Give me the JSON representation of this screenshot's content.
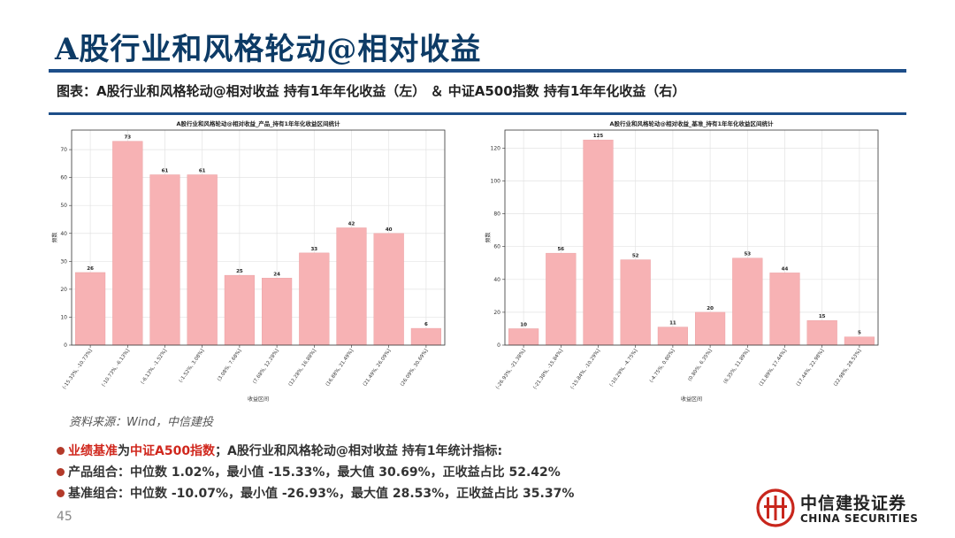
{
  "page": {
    "title": "A股行业和风格轮动@相对收益",
    "subtitle": "图表：A股行业和风格轮动@相对收益  持有1年年化收益（左）  ＆ 中证A500指数  持有1年年化收益（右）",
    "source": "资料来源：Wind，中信建投",
    "page_number": "45",
    "notes": [
      {
        "parts": [
          {
            "text": "业绩基准",
            "red": true
          },
          {
            "text": "为",
            "red": false
          },
          {
            "text": "中证A500指数",
            "red": true
          },
          {
            "text": "；A股行业和风格轮动@相对收益  持有1年统计指标:",
            "red": false
          }
        ]
      },
      {
        "parts": [
          {
            "text": "产品组合：中位数 1.02%，最小值 -15.33%，最大值 30.69%，正收益占比 52.42%",
            "red": false
          }
        ]
      },
      {
        "parts": [
          {
            "text": "基准组合：中位数 -10.07%，最小值 -26.93%，最大值 28.53%，正收益占比 35.37%",
            "red": false
          }
        ]
      }
    ],
    "logo": {
      "cn": "中信建投证券",
      "en": "CHINA SECURITIES"
    }
  },
  "colors": {
    "bar": "#f7b2b4",
    "bar_edge": "#e89a9d",
    "accent": "#1d4e89",
    "title": "#0d3b66",
    "highlight": "#d0271d"
  },
  "chart_data": [
    {
      "type": "bar",
      "title": "A股行业和风格轮动@相对收益_产品_持有1年年化收益区间统计",
      "xlabel": "收益区间",
      "ylabel": "频数",
      "categories": [
        "(-15.33%, -10.73%]",
        "(-10.73%, -6.13%]",
        "(-6.13%, -1.52%]",
        "(-1.52%, 3.08%]",
        "(3.08%, 7.68%]",
        "(7.68%, 12.28%]",
        "(12.28%, 16.88%]",
        "(16.88%, 21.49%]",
        "(21.49%, 26.09%]",
        "(26.09%, 30.69%]"
      ],
      "values": [
        26,
        73,
        61,
        61,
        25,
        24,
        33,
        42,
        40,
        6
      ],
      "ylim": [
        0,
        77
      ],
      "yticks": [
        0,
        10,
        20,
        30,
        40,
        50,
        60,
        70
      ],
      "grid": true
    },
    {
      "type": "bar",
      "title": "A股行业和风格轮动@相对收益_基准_持有1年年化收益区间统计",
      "xlabel": "收益区间",
      "ylabel": "频数",
      "categories": [
        "(-26.93%, -21.38%]",
        "(-21.38%, -15.84%]",
        "(-15.84%, -10.29%]",
        "(-10.29%, -4.75%]",
        "(-4.75%, 0.80%]",
        "(0.80%, 6.35%]",
        "(6.35%, 11.89%]",
        "(11.89%, 17.44%]",
        "(17.44%, 22.98%]",
        "(22.98%, 28.53%]"
      ],
      "values": [
        10,
        56,
        125,
        52,
        11,
        20,
        53,
        44,
        15,
        5
      ],
      "ylim": [
        0,
        131
      ],
      "yticks": [
        0,
        20,
        40,
        60,
        80,
        100,
        120
      ],
      "grid": true
    }
  ]
}
